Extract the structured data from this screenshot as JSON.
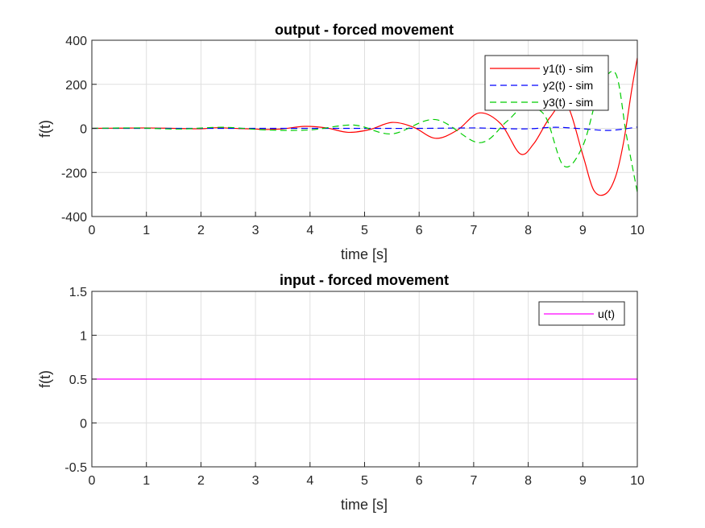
{
  "chart_data": [
    {
      "type": "line",
      "title": "output - forced movement",
      "xlabel": "time [s]",
      "ylabel": "f(t)",
      "xlim": [
        0,
        10
      ],
      "ylim": [
        -400,
        400
      ],
      "xticks": [
        "0",
        "1",
        "2",
        "3",
        "4",
        "5",
        "6",
        "7",
        "8",
        "9",
        "10"
      ],
      "yticks": [
        "400",
        "200",
        "0",
        "-200",
        "-400"
      ],
      "grid": true,
      "legend_position": "top-right",
      "series": [
        {
          "name": "y1(t) - sim",
          "color": "#ff0000",
          "dash": "solid",
          "x": [
            0,
            0.5,
            1,
            1.5,
            2,
            2.3,
            2.7,
            3,
            3.15,
            3.5,
            3.9,
            4.3,
            4.7,
            5.1,
            5.5,
            5.9,
            6.3,
            6.7,
            7.1,
            7.5,
            7.85,
            8.1,
            8.4,
            8.7,
            9.0,
            9.2,
            9.42,
            9.6,
            9.75,
            9.9,
            10
          ],
          "y": [
            0,
            1,
            2,
            0,
            -2,
            3,
            -1,
            -3,
            -5,
            -2,
            9,
            2,
            -18,
            -5,
            27,
            5,
            -45,
            -8,
            70,
            20,
            -115,
            -70,
            50,
            110,
            -120,
            -280,
            -297,
            -220,
            -60,
            180,
            320
          ]
        },
        {
          "name": "y2(t) - sim",
          "color": "#0000ff",
          "dash": "dashed",
          "x": [
            0,
            1,
            2,
            3,
            4,
            5,
            6,
            7,
            7.5,
            8,
            8.5,
            9,
            9.5,
            10
          ],
          "y": [
            0,
            0,
            0,
            0,
            0,
            0,
            0,
            2,
            -1,
            -2,
            5,
            -2,
            -9,
            6
          ]
        },
        {
          "name": "y3(t) - sim",
          "color": "#00cc00",
          "dash": "dashed",
          "x": [
            0,
            0.8,
            1.6,
            2.4,
            3.2,
            4,
            4.8,
            5.5,
            6.3,
            7.1,
            7.6,
            7.9,
            8.3,
            8.65,
            9.0,
            9.3,
            9.6,
            9.8,
            10
          ],
          "y": [
            0,
            2,
            -3,
            5,
            -7,
            -7,
            15,
            -25,
            40,
            -65,
            30,
            90,
            60,
            -170,
            -80,
            170,
            250,
            -30,
            -290
          ]
        }
      ]
    },
    {
      "type": "line",
      "title": "input - forced movement",
      "xlabel": "time [s]",
      "ylabel": "f(t)",
      "xlim": [
        0,
        10
      ],
      "ylim": [
        -0.5,
        1.5
      ],
      "xticks": [
        "0",
        "1",
        "2",
        "3",
        "4",
        "5",
        "6",
        "7",
        "8",
        "9",
        "10"
      ],
      "yticks": [
        "1.5",
        "1",
        "0.5",
        "0",
        "-0.5"
      ],
      "grid": true,
      "legend_position": "top-right",
      "series": [
        {
          "name": "u(t)",
          "color": "#ff00ff",
          "dash": "solid",
          "x": [
            0,
            10
          ],
          "y": [
            0.5,
            0.5
          ]
        }
      ]
    }
  ]
}
